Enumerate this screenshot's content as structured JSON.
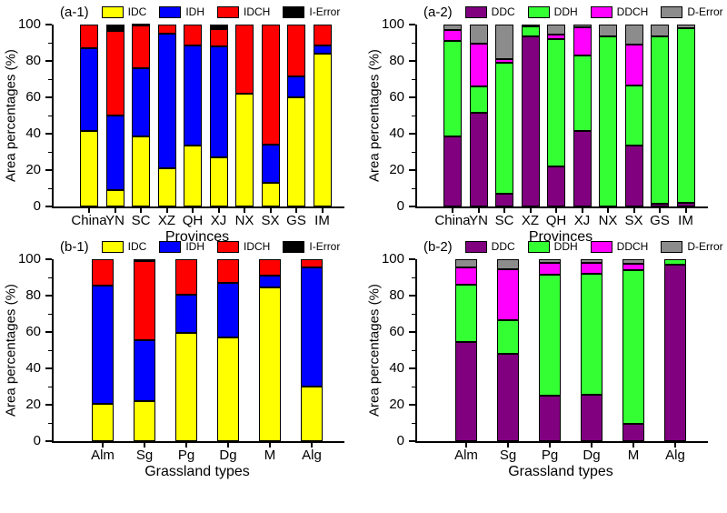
{
  "figure": {
    "background": "#ffffff",
    "ink_color": "#000000"
  },
  "chart_data": [
    {
      "type": "bar",
      "stacked": true,
      "panel_label": "(a-1)",
      "xlabel": "Provinces",
      "ylabel": "Area percentages (%)",
      "ylim": [
        0,
        100
      ],
      "yticks": [
        0,
        20,
        40,
        60,
        80,
        100
      ],
      "yminor": [
        10,
        30,
        50,
        70,
        90
      ],
      "grid": false,
      "legend_position": "top",
      "categories": [
        "China",
        "YN",
        "SC",
        "XZ",
        "QH",
        "XJ",
        "NX",
        "SX",
        "GS",
        "IM"
      ],
      "series": [
        {
          "name": "IDC",
          "color": "#FFFF00",
          "values": [
            41.5,
            9,
            38.5,
            21,
            33.5,
            27,
            62,
            13,
            60,
            84
          ]
        },
        {
          "name": "IDH",
          "color": "#0000FF",
          "values": [
            45.5,
            41,
            37.5,
            74,
            55,
            61,
            0,
            21,
            11.5,
            4.5
          ]
        },
        {
          "name": "IDCH",
          "color": "#FF0000",
          "values": [
            13,
            46.5,
            23.5,
            5,
            11.5,
            9.5,
            38,
            66,
            28.5,
            11.5
          ]
        },
        {
          "name": "I-Error",
          "color": "#000000",
          "values": [
            0,
            3.5,
            0.5,
            0,
            0,
            2.5,
            0,
            0,
            0,
            0
          ]
        }
      ]
    },
    {
      "type": "bar",
      "stacked": true,
      "panel_label": "(a-2)",
      "xlabel": "Provinces",
      "ylabel": "Area percentages (%)",
      "ylim": [
        0,
        100
      ],
      "yticks": [
        0,
        20,
        40,
        60,
        80,
        100
      ],
      "yminor": [
        10,
        30,
        50,
        70,
        90
      ],
      "grid": false,
      "legend_position": "top",
      "categories": [
        "China",
        "YN",
        "SC",
        "XZ",
        "QH",
        "XJ",
        "NX",
        "SX",
        "GS",
        "IM"
      ],
      "series": [
        {
          "name": "DDC",
          "color": "#800080",
          "values": [
            38.5,
            51.5,
            7,
            93.5,
            22,
            41.5,
            0,
            33.5,
            1.5,
            2
          ]
        },
        {
          "name": "DDH",
          "color": "#33FF33",
          "values": [
            52.5,
            14.5,
            72,
            5.5,
            70,
            41.5,
            93.5,
            33,
            92,
            96
          ]
        },
        {
          "name": "DDCH",
          "color": "#FF00FF",
          "values": [
            6,
            23.5,
            2,
            0,
            2.5,
            15.5,
            0,
            22.5,
            0,
            0
          ]
        },
        {
          "name": "D-Error",
          "color": "#8C8C8C",
          "values": [
            3,
            10.5,
            19,
            1,
            5.5,
            1.5,
            6.5,
            11,
            6.5,
            2
          ]
        }
      ]
    },
    {
      "type": "bar",
      "stacked": true,
      "panel_label": "(b-1)",
      "xlabel": "Grassland types",
      "ylabel": "Area percentages (%)",
      "ylim": [
        0,
        100
      ],
      "yticks": [
        0,
        20,
        40,
        60,
        80,
        100
      ],
      "yminor": [
        10,
        30,
        50,
        70,
        90
      ],
      "grid": false,
      "legend_position": "top",
      "categories": [
        "Alm",
        "Sg",
        "Pg",
        "Dg",
        "M",
        "Alg"
      ],
      "series": [
        {
          "name": "IDC",
          "color": "#FFFF00",
          "values": [
            20.5,
            22,
            59.5,
            57,
            84.5,
            30
          ]
        },
        {
          "name": "IDH",
          "color": "#0000FF",
          "values": [
            65,
            33.5,
            21,
            30,
            6.5,
            65.5
          ]
        },
        {
          "name": "IDCH",
          "color": "#FF0000",
          "values": [
            14.5,
            43.5,
            19.5,
            13,
            9,
            4.5
          ]
        },
        {
          "name": "I-Error",
          "color": "#000000",
          "values": [
            0,
            1,
            0,
            0,
            0,
            0
          ]
        }
      ]
    },
    {
      "type": "bar",
      "stacked": true,
      "panel_label": "(b-2)",
      "xlabel": "Grassland types",
      "ylabel": "Area percentages (%)",
      "ylim": [
        0,
        100
      ],
      "yticks": [
        0,
        20,
        40,
        60,
        80,
        100
      ],
      "yminor": [
        10,
        30,
        50,
        70,
        90
      ],
      "grid": false,
      "legend_position": "top",
      "categories": [
        "Alm",
        "Sg",
        "Pg",
        "Dg",
        "M",
        "Alg"
      ],
      "series": [
        {
          "name": "DDC",
          "color": "#800080",
          "values": [
            54.5,
            48,
            25,
            25.5,
            9.5,
            97
          ]
        },
        {
          "name": "DDH",
          "color": "#33FF33",
          "values": [
            31.5,
            18.5,
            66.5,
            66.5,
            84.5,
            3
          ]
        },
        {
          "name": "DDCH",
          "color": "#FF00FF",
          "values": [
            9.5,
            28,
            6.5,
            6,
            3.5,
            0
          ]
        },
        {
          "name": "D-Error",
          "color": "#8C8C8C",
          "values": [
            4.5,
            5.5,
            2,
            2,
            2.5,
            0
          ]
        }
      ]
    }
  ]
}
